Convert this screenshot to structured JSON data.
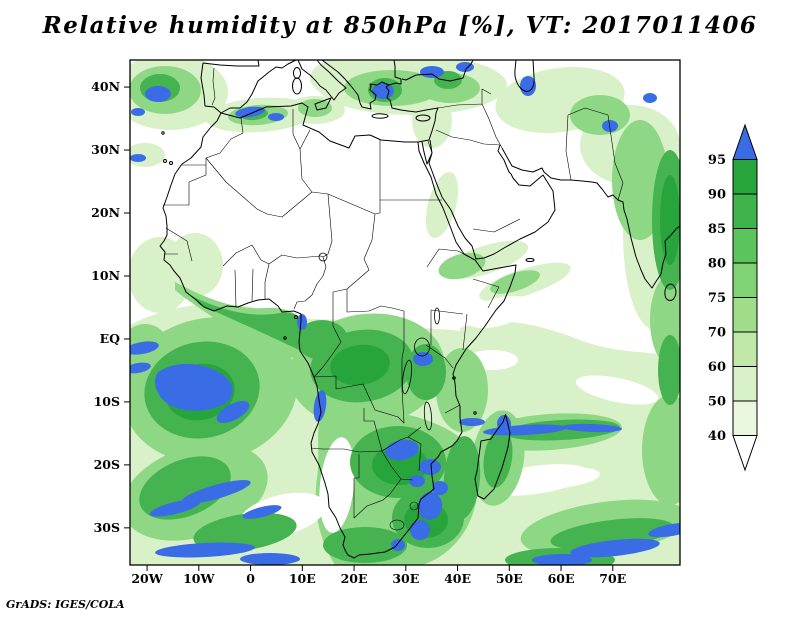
{
  "title": "Relative humidity at 850hPa [%], VT: 2017011406",
  "attribution": "GrADS: IGES/COLA",
  "axes": {
    "lat_ticks": [
      {
        "label": "40N",
        "lat": 40
      },
      {
        "label": "30N",
        "lat": 30
      },
      {
        "label": "20N",
        "lat": 20
      },
      {
        "label": "10N",
        "lat": 10
      },
      {
        "label": "EQ",
        "lat": 0
      },
      {
        "label": "10S",
        "lat": -10
      },
      {
        "label": "20S",
        "lat": -20
      },
      {
        "label": "30S",
        "lat": -30
      }
    ],
    "lon_ticks": [
      {
        "label": "20W",
        "lon": -20
      },
      {
        "label": "10W",
        "lon": -10
      },
      {
        "label": "0",
        "lon": 0
      },
      {
        "label": "10E",
        "lon": 10
      },
      {
        "label": "20E",
        "lon": 20
      },
      {
        "label": "30E",
        "lon": 30
      },
      {
        "label": "40E",
        "lon": 40
      },
      {
        "label": "50E",
        "lon": 50
      },
      {
        "label": "60E",
        "lon": 60
      },
      {
        "label": "70E",
        "lon": 70
      }
    ]
  },
  "colorbar": {
    "labels_top_to_bottom": [
      "95",
      "90",
      "85",
      "80",
      "75",
      "70",
      "60",
      "50",
      "40"
    ],
    "colors_top_to_bottom": [
      "#3a6ce6",
      "#27a53c",
      "#3fb44c",
      "#5cc45c",
      "#7fd375",
      "#a0dd8b",
      "#c0e8a8",
      "#d9f1c8",
      "#e9f7df",
      "#ffffff"
    ]
  },
  "chart_data": {
    "type": "heatmap",
    "title": "Relative humidity at 850hPa [%], VT: 2017011406",
    "variable": "Relative humidity",
    "pressure_level": "850hPa",
    "units": "%",
    "valid_time": "2017011406",
    "x_axis": {
      "ticks": [
        "20W",
        "10W",
        "0",
        "10E",
        "20E",
        "30E",
        "40E",
        "50E",
        "60E",
        "70E"
      ],
      "approx_range_deg": [
        -23,
        83
      ]
    },
    "y_axis": {
      "ticks": [
        "40N",
        "30N",
        "20N",
        "10N",
        "EQ",
        "10S",
        "20S",
        "30S"
      ],
      "approx_range_deg": [
        -36,
        44
      ]
    },
    "colorbar_levels": [
      40,
      50,
      60,
      70,
      75,
      80,
      85,
      90,
      95
    ],
    "colorbar_colors_low_to_high": [
      "#ffffff",
      "#e9f7df",
      "#d9f1c8",
      "#c0e8a8",
      "#a0dd8b",
      "#7fd375",
      "#5cc45c",
      "#3fb44c",
      "#27a53c",
      "#3a6ce6"
    ],
    "legend_position": "right",
    "grid": false,
    "visible_features": [
      "Dry (white, <40%) air over the Sahara, Arabian Peninsula and subtropical North Atlantic",
      "Moist green band over the Gulf of Guinea, Congo basin and East Africa",
      "Large moist region over southern Africa and the South Atlantic with saturated blue (>95%) cores near 10S in the Atlantic and over Zimbabwe/Mozambique/eastern South Africa",
      "Saturated blue patches along the Algerian coast, Aegean Sea and southern Caspian",
      "Elongated moist/saturated streaks across the southern Indian Ocean near 10S and 30S",
      "Moist band along the far eastern edge (west India) and over the NW Atlantic near Iberia"
    ],
    "attribution": "GrADS: IGES/COLA"
  }
}
